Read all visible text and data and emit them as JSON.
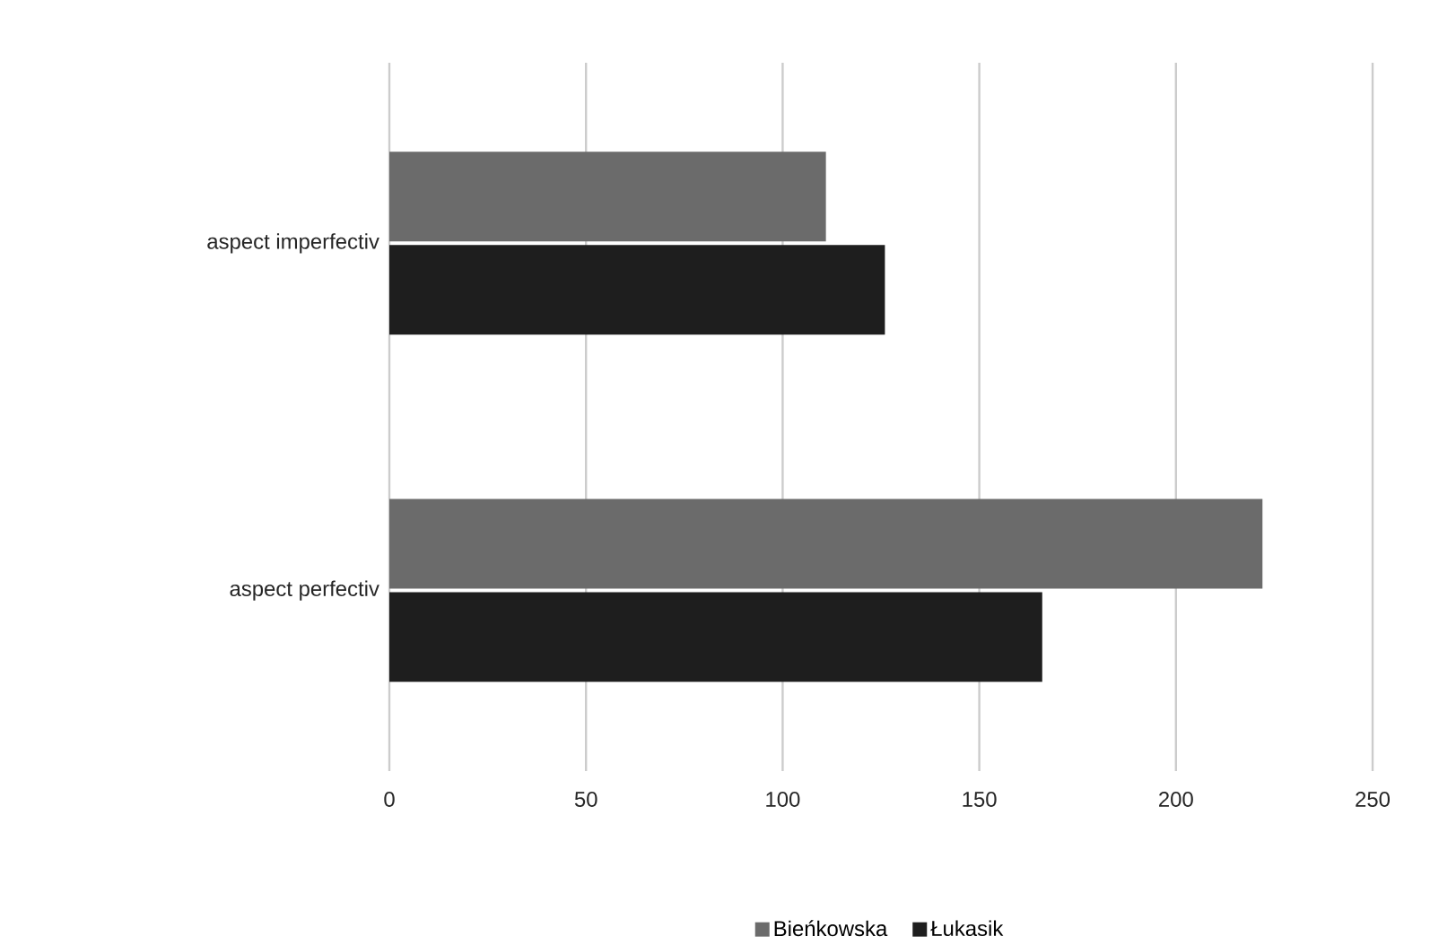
{
  "chart_data": {
    "type": "bar",
    "orientation": "horizontal",
    "categories": [
      "aspect imperfectiv",
      "aspect perfectiv"
    ],
    "series": [
      {
        "name": "Bieńkowska",
        "color": "#6b6b6b",
        "values": [
          111,
          222
        ]
      },
      {
        "name": "Łukasik",
        "color": "#1e1e1e",
        "values": [
          126,
          166
        ]
      }
    ],
    "xlim": [
      0,
      250
    ],
    "xticks": [
      0,
      50,
      100,
      150,
      200,
      250
    ],
    "grid": "x",
    "legend": "bottom"
  }
}
